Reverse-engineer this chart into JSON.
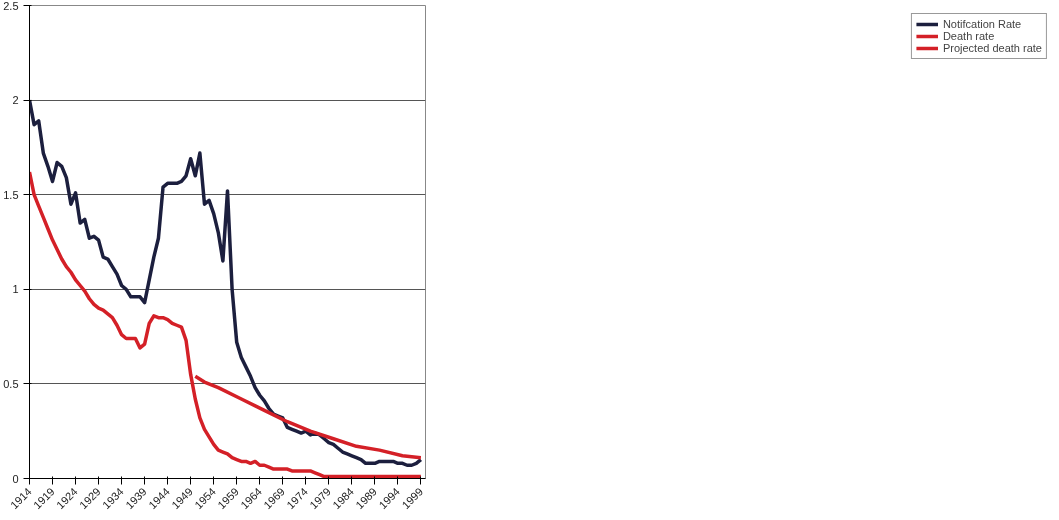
{
  "chart_data": {
    "type": "line",
    "xlim": [
      1914,
      2000
    ],
    "xticks": [
      1914,
      1919,
      1924,
      1929,
      1934,
      1939,
      1944,
      1949,
      1954,
      1959,
      1964,
      1969,
      1974,
      1979,
      1984,
      1989,
      1994,
      1999
    ],
    "ylim": [
      0,
      2.5
    ],
    "yticks": [
      0,
      0.5,
      1,
      1.5,
      2,
      2.5
    ],
    "grid": "y",
    "legend": "right",
    "line_style": "solid",
    "marker": "none",
    "series": [
      {
        "name": "Notifcation Rate",
        "color": "#1c1f3e",
        "x": [
          1914,
          1915,
          1916,
          1917,
          1918,
          1919,
          1920,
          1921,
          1922,
          1923,
          1924,
          1925,
          1926,
          1927,
          1928,
          1929,
          1930,
          1931,
          1932,
          1933,
          1934,
          1935,
          1936,
          1937,
          1938,
          1939,
          1940,
          1941,
          1942,
          1943,
          1944,
          1945,
          1946,
          1947,
          1948,
          1949,
          1950,
          1951,
          1952,
          1953,
          1954,
          1955,
          1956,
          1957,
          1958,
          1959,
          1960,
          1961,
          1962,
          1963,
          1964,
          1965,
          1966,
          1967,
          1968,
          1969,
          1970,
          1971,
          1972,
          1973,
          1974,
          1975,
          1976,
          1977,
          1978,
          1979,
          1980,
          1981,
          1982,
          1983,
          1984,
          1985,
          1986,
          1987,
          1988,
          1989,
          1990,
          1991,
          1992,
          1993,
          1994,
          1995,
          1996,
          1997,
          1998,
          1999
        ],
        "values": [
          2.0,
          1.87,
          1.89,
          1.72,
          1.65,
          1.57,
          1.67,
          1.65,
          1.59,
          1.45,
          1.51,
          1.35,
          1.37,
          1.27,
          1.28,
          1.26,
          1.17,
          1.16,
          1.12,
          1.08,
          1.02,
          1.0,
          0.96,
          0.96,
          0.96,
          0.93,
          1.05,
          1.17,
          1.27,
          1.54,
          1.56,
          1.56,
          1.56,
          1.57,
          1.6,
          1.69,
          1.6,
          1.72,
          1.45,
          1.47,
          1.4,
          1.3,
          1.15,
          1.52,
          1.0,
          0.72,
          0.64,
          0.59,
          0.54,
          0.48,
          0.44,
          0.41,
          0.37,
          0.34,
          0.33,
          0.32,
          0.27,
          0.26,
          0.25,
          0.24,
          0.25,
          0.23,
          0.24,
          0.23,
          0.21,
          0.19,
          0.18,
          0.16,
          0.14,
          0.13,
          0.12,
          0.11,
          0.1,
          0.08,
          0.08,
          0.08,
          0.09,
          0.09,
          0.09,
          0.09,
          0.08,
          0.08,
          0.07,
          0.07,
          0.08,
          0.1
        ]
      },
      {
        "name": "Death rate",
        "color": "#d42027",
        "x": [
          1914,
          1915,
          1916,
          1917,
          1918,
          1919,
          1920,
          1921,
          1922,
          1923,
          1924,
          1925,
          1926,
          1927,
          1928,
          1929,
          1930,
          1931,
          1932,
          1933,
          1934,
          1935,
          1936,
          1937,
          1938,
          1939,
          1940,
          1941,
          1942,
          1943,
          1944,
          1945,
          1946,
          1947,
          1948,
          1949,
          1950,
          1951,
          1952,
          1953,
          1954,
          1955,
          1956,
          1957,
          1958,
          1959,
          1960,
          1961,
          1962,
          1963,
          1964,
          1965,
          1966,
          1967,
          1968,
          1969,
          1970,
          1971,
          1972,
          1973,
          1974,
          1975,
          1976,
          1977,
          1978,
          1979,
          1980,
          1985,
          1990,
          1995,
          1999
        ],
        "values": [
          1.62,
          1.5,
          1.44,
          1.38,
          1.32,
          1.26,
          1.21,
          1.16,
          1.12,
          1.09,
          1.05,
          1.02,
          0.99,
          0.95,
          0.92,
          0.9,
          0.89,
          0.87,
          0.85,
          0.81,
          0.76,
          0.74,
          0.74,
          0.74,
          0.69,
          0.71,
          0.82,
          0.86,
          0.85,
          0.85,
          0.84,
          0.82,
          0.81,
          0.8,
          0.73,
          0.55,
          0.42,
          0.32,
          0.26,
          0.22,
          0.18,
          0.15,
          0.14,
          0.13,
          0.11,
          0.1,
          0.09,
          0.09,
          0.08,
          0.09,
          0.07,
          0.07,
          0.06,
          0.05,
          0.05,
          0.05,
          0.05,
          0.04,
          0.04,
          0.04,
          0.04,
          0.04,
          0.03,
          0.02,
          0.01,
          0.01,
          0.01,
          0.01,
          0.01,
          0.01,
          0.01
        ]
      },
      {
        "name": "Projected death rate",
        "color": "#d42027",
        "x": [
          1950,
          1952,
          1955,
          1960,
          1965,
          1970,
          1975,
          1980,
          1985,
          1990,
          1995,
          1999
        ],
        "values": [
          0.54,
          0.51,
          0.48,
          0.42,
          0.36,
          0.3,
          0.25,
          0.21,
          0.17,
          0.15,
          0.12,
          0.11
        ]
      }
    ]
  }
}
